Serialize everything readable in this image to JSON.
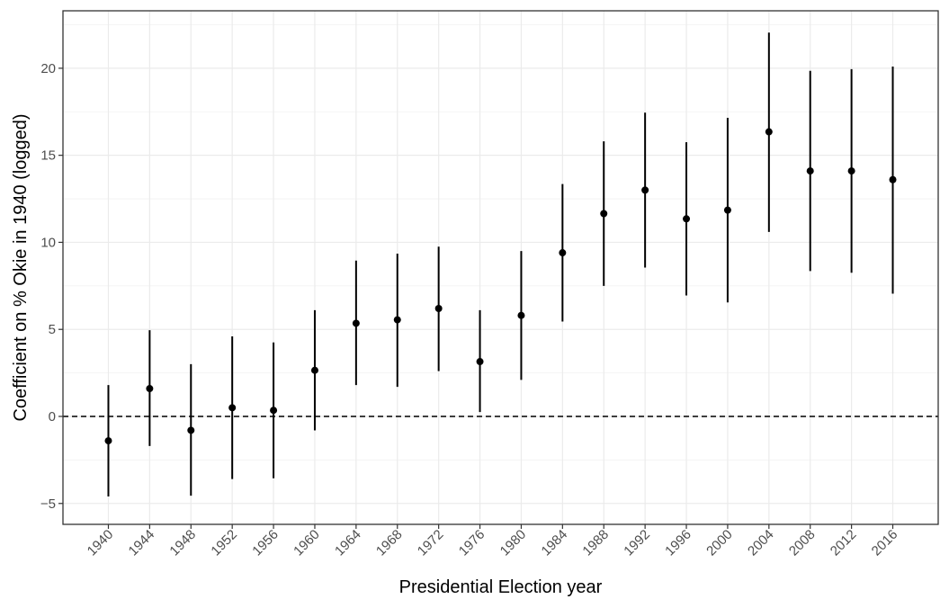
{
  "chart_data": {
    "type": "scatter",
    "title": "",
    "xlabel": "Presidential Election year",
    "ylabel": "Coefficient on % Okie in 1940 (logged)",
    "ylim": [
      -6.2,
      23.3
    ],
    "yticks": [
      -5,
      0,
      5,
      10,
      15,
      20
    ],
    "grid": true,
    "reference_line": {
      "y": 0,
      "style": "dashed"
    },
    "categories": [
      "1940",
      "1944",
      "1948",
      "1952",
      "1956",
      "1960",
      "1964",
      "1968",
      "1972",
      "1976",
      "1980",
      "1984",
      "1988",
      "1992",
      "1996",
      "2000",
      "2004",
      "2008",
      "2012",
      "2016"
    ],
    "series": [
      {
        "estimate": [
          -1.4,
          1.6,
          -0.8,
          0.5,
          0.35,
          2.65,
          5.35,
          5.55,
          6.2,
          3.15,
          5.8,
          9.4,
          11.65,
          13.0,
          11.35,
          11.85,
          16.35,
          14.1,
          14.1,
          13.6
        ],
        "lower": [
          -4.6,
          -1.7,
          -4.55,
          -3.6,
          -3.55,
          -0.8,
          1.8,
          1.7,
          2.6,
          0.25,
          2.1,
          5.45,
          7.5,
          8.55,
          6.95,
          6.55,
          10.6,
          8.35,
          8.25,
          7.05
        ],
        "upper": [
          1.8,
          4.95,
          3.0,
          4.6,
          4.25,
          6.1,
          8.95,
          9.35,
          9.75,
          6.1,
          9.5,
          13.35,
          15.8,
          17.45,
          15.75,
          17.15,
          22.05,
          19.85,
          19.95,
          20.1
        ]
      }
    ]
  }
}
